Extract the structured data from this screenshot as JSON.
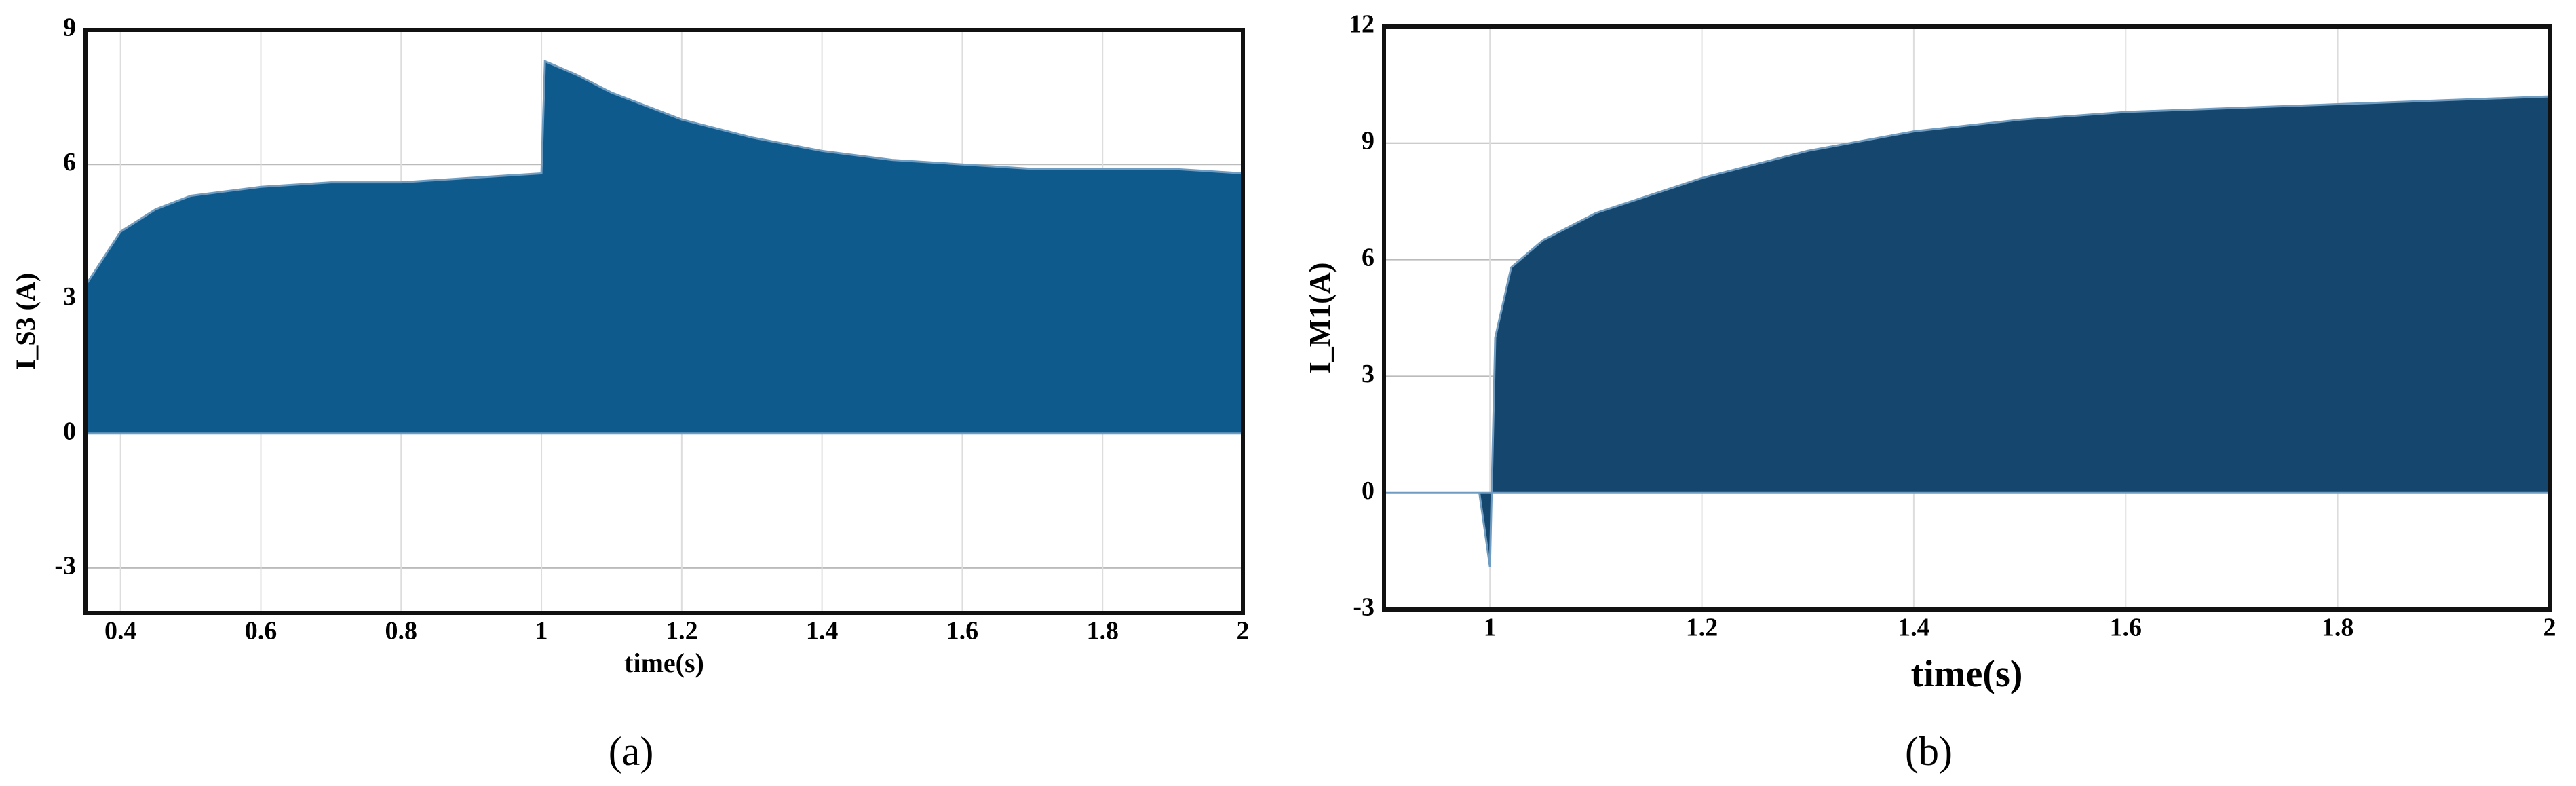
{
  "chart_data": [
    {
      "type": "area",
      "caption": "(a)",
      "x_label": "time(s)",
      "y_label": "I_S3 (A)",
      "color": "#0f5a8c",
      "grid": true,
      "x": [
        0.35,
        0.4,
        0.45,
        0.5,
        0.6,
        0.7,
        0.8,
        0.9,
        1.0,
        1.005,
        1.05,
        1.1,
        1.2,
        1.3,
        1.4,
        1.5,
        1.6,
        1.7,
        1.8,
        1.9,
        2.0
      ],
      "values": [
        3.3,
        4.5,
        5.0,
        5.3,
        5.5,
        5.6,
        5.6,
        5.7,
        5.8,
        8.3,
        8.0,
        7.6,
        7.0,
        6.6,
        6.3,
        6.1,
        6.0,
        5.9,
        5.9,
        5.9,
        5.8
      ],
      "xlim": [
        0.35,
        2
      ],
      "xticks": [
        0.4,
        0.6,
        0.8,
        1,
        1.2,
        1.4,
        1.6,
        1.8,
        2
      ],
      "ylim": [
        -4,
        9
      ],
      "yticks": [
        -3,
        0,
        3,
        6,
        9
      ]
    },
    {
      "type": "area",
      "caption": "(b)",
      "x_label": "time(s)",
      "y_label": "I_M1(A)",
      "color": "#15476e",
      "grid": true,
      "x": [
        0.9,
        0.99,
        1.0,
        1.005,
        1.02,
        1.05,
        1.1,
        1.2,
        1.3,
        1.4,
        1.5,
        1.6,
        1.7,
        1.8,
        1.9,
        2.0
      ],
      "values": [
        0,
        0,
        -1.9,
        4,
        5.8,
        6.5,
        7.2,
        8.1,
        8.8,
        9.3,
        9.6,
        9.8,
        9.9,
        10.0,
        10.1,
        10.2
      ],
      "xlim": [
        0.9,
        2
      ],
      "xticks": [
        1,
        1.2,
        1.4,
        1.6,
        1.8,
        2
      ],
      "ylim": [
        -3,
        12
      ],
      "yticks": [
        -3,
        0,
        3,
        6,
        9,
        12
      ]
    }
  ]
}
